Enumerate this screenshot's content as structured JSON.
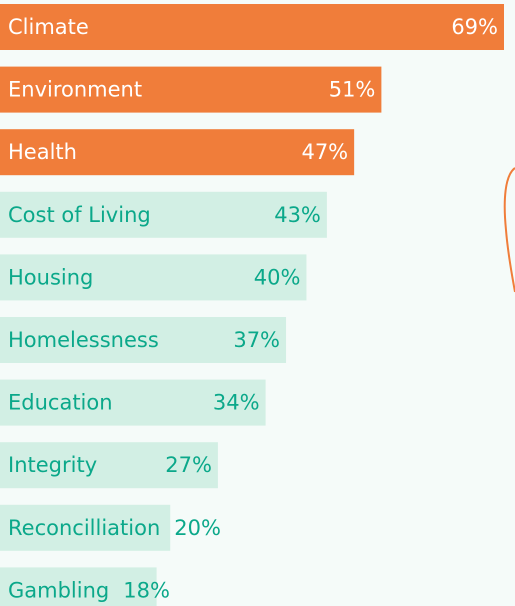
{
  "chart_data": {
    "type": "hbar",
    "categories": [
      "Climate",
      "Environment",
      "Health",
      "Cost of Living",
      "Housing",
      "Homelessness",
      "Education",
      "Integrity",
      "Reconcilliation",
      "Gambling"
    ],
    "values": [
      69,
      51,
      47,
      43,
      40,
      37,
      34,
      27,
      20,
      18
    ],
    "value_labels": [
      "69%",
      "51%",
      "47%",
      "43%",
      "40%",
      "37%",
      "34%",
      "27%",
      "20%",
      "18%"
    ],
    "colors": [
      "#f07d3a",
      "#f07d3a",
      "#f07d3a",
      "#d2efe4",
      "#d2efe4",
      "#d2efe4",
      "#d2efe4",
      "#d2efe4",
      "#d2efe4",
      "#d2efe4"
    ],
    "label_colors": [
      "#ffffff",
      "#ffffff",
      "#ffffff",
      "#0ba88a",
      "#0ba88a",
      "#0ba88a",
      "#0ba88a",
      "#0ba88a",
      "#0ba88a",
      "#0ba88a"
    ]
  }
}
